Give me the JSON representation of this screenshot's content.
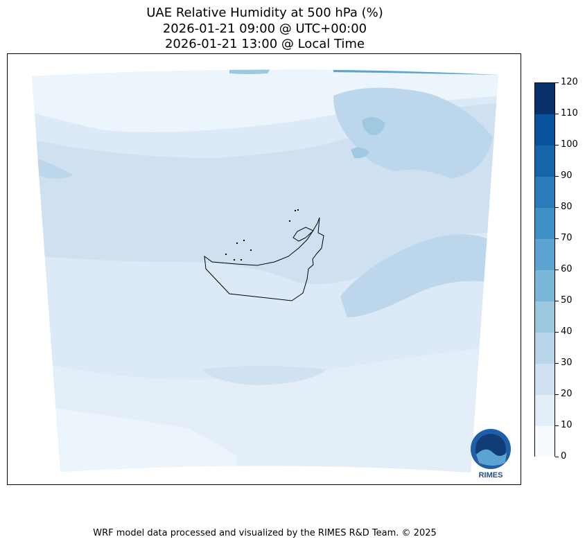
{
  "title": {
    "line1": "UAE Relative Humidity at 500 hPa (%)",
    "line2": "2026-01-21 09:00 @ UTC+00:00",
    "line3": "2026-01-21 13:00 @ Local Time"
  },
  "colorbar": {
    "ticks": [
      "0",
      "10",
      "20",
      "30",
      "40",
      "50",
      "60",
      "70",
      "80",
      "90",
      "100",
      "110",
      "120"
    ],
    "levels": [
      0,
      10,
      20,
      30,
      40,
      50,
      60,
      70,
      80,
      90,
      100,
      110,
      120
    ],
    "colors": [
      "#f7fbff",
      "#e3eef9",
      "#d0e2f2",
      "#b8d5ea",
      "#9dc9e0",
      "#7bb7d9",
      "#5ba3d0",
      "#4190c5",
      "#2b7bba",
      "#1764ab",
      "#09539d",
      "#08306b"
    ]
  },
  "logo": {
    "text": "RIMES"
  },
  "footer": "WRF model data processed and visualized by the RIMES R&D Team. © 2025"
}
